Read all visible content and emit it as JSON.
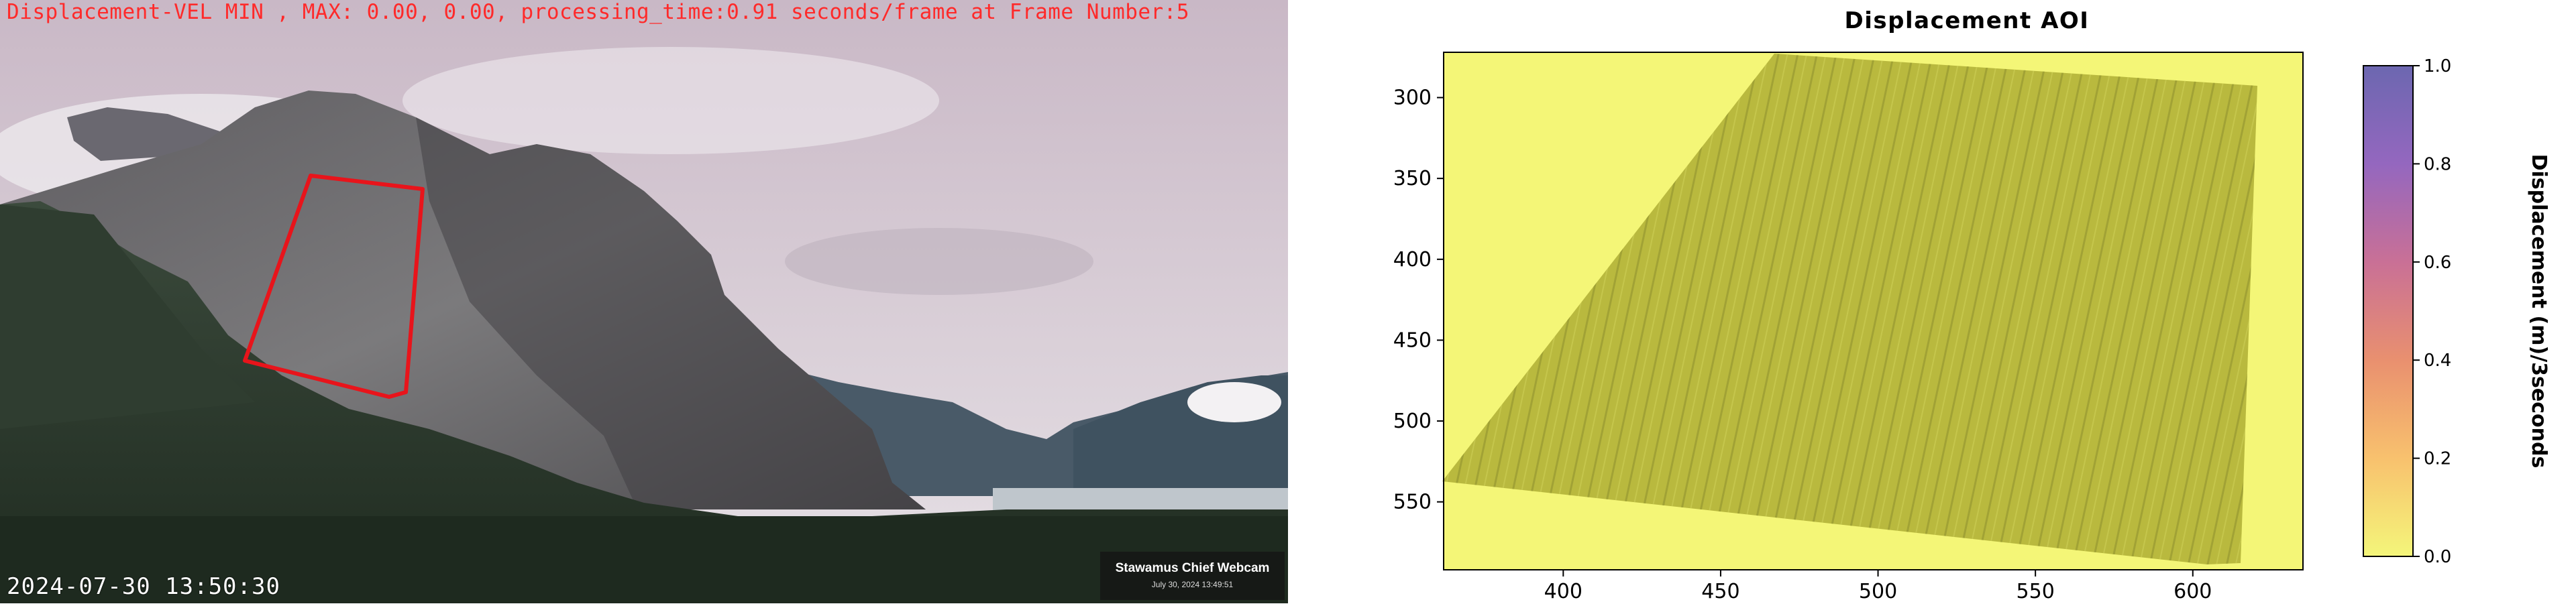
{
  "webcam": {
    "overlay_text": "Displacement-VEL MIN , MAX: 0.00, 0.00, processing_time:0.91 seconds/frame at Frame Number:5",
    "timestamp": "2024-07-30 13:50:30",
    "badge_title": "Stawamus Chief Webcam",
    "badge_date": "July 30, 2024 13:49:51",
    "aoi_color": "#e8141b"
  },
  "chart_data": {
    "type": "heatmap",
    "title": "Displacement AOI",
    "xlabel": "",
    "ylabel": "",
    "xlim": [
      362,
      635
    ],
    "ylim": [
      592,
      272
    ],
    "x_ticks": [
      "400",
      "450",
      "500",
      "550",
      "600"
    ],
    "x_tick_values": [
      400,
      450,
      500,
      550,
      600
    ],
    "y_ticks": [
      "300",
      "350",
      "400",
      "450",
      "500",
      "550"
    ],
    "y_tick_values": [
      300,
      350,
      400,
      450,
      500,
      550
    ],
    "colorbar": {
      "label": "Displacement (m)/3seconds",
      "ticks": [
        "1.0",
        "0.8",
        "0.6",
        "0.4",
        "0.2",
        "0.0"
      ],
      "tick_values": [
        1.0,
        0.8,
        0.6,
        0.4,
        0.2,
        0.0
      ],
      "range": [
        0.0,
        1.0
      ],
      "colors": [
        "#f4f67a",
        "#f8c16e",
        "#e9906f",
        "#c97096",
        "#9467bf",
        "#6c67b0"
      ]
    },
    "displacement_min": 0.0,
    "displacement_max": 0.0,
    "background_color": "#f4f677",
    "surface_color": "#b9b93e"
  }
}
